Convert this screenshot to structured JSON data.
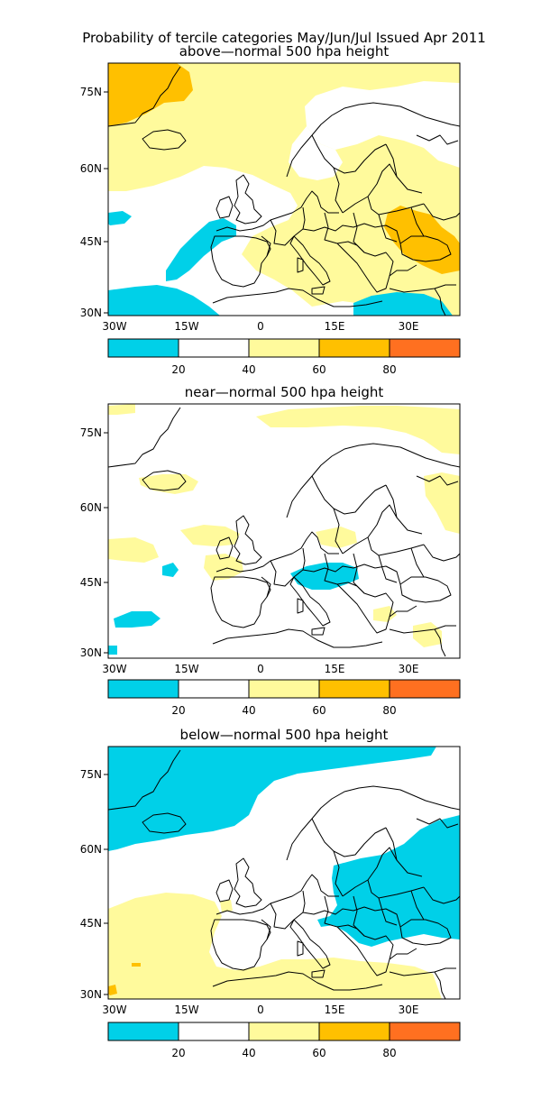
{
  "figure": {
    "title_line1": "Probability of tercile categories May/Jun/Jul Issued Apr 2011",
    "colors": {
      "lt20": "#00d0e8",
      "w20_40": "#ffffff",
      "p40_60": "#fffa9c",
      "p60_80": "#ffc000",
      "gt80": "#ff7020"
    }
  },
  "panels": [
    {
      "title": "above—normal 500 hpa height",
      "lon_ticks": [
        "30W",
        "15W",
        "0",
        "15E",
        "30E"
      ],
      "lat_ticks": [
        "75N",
        "60N",
        "45N",
        "30N"
      ],
      "colorbar_labels": [
        "20",
        "40",
        "60",
        "80"
      ]
    },
    {
      "title": "near—normal 500 hpa height",
      "lon_ticks": [
        "30W",
        "15W",
        "0",
        "15E",
        "30E"
      ],
      "lat_ticks": [
        "75N",
        "60N",
        "45N",
        "30N"
      ],
      "colorbar_labels": [
        "20",
        "40",
        "60",
        "80"
      ]
    },
    {
      "title": "below—normal 500 hpa height",
      "lon_ticks": [
        "30W",
        "15W",
        "0",
        "15E",
        "30E"
      ],
      "lat_ticks": [
        "75N",
        "60N",
        "45N",
        "30N"
      ],
      "colorbar_labels": [
        "20",
        "40",
        "60",
        "80"
      ]
    }
  ]
}
